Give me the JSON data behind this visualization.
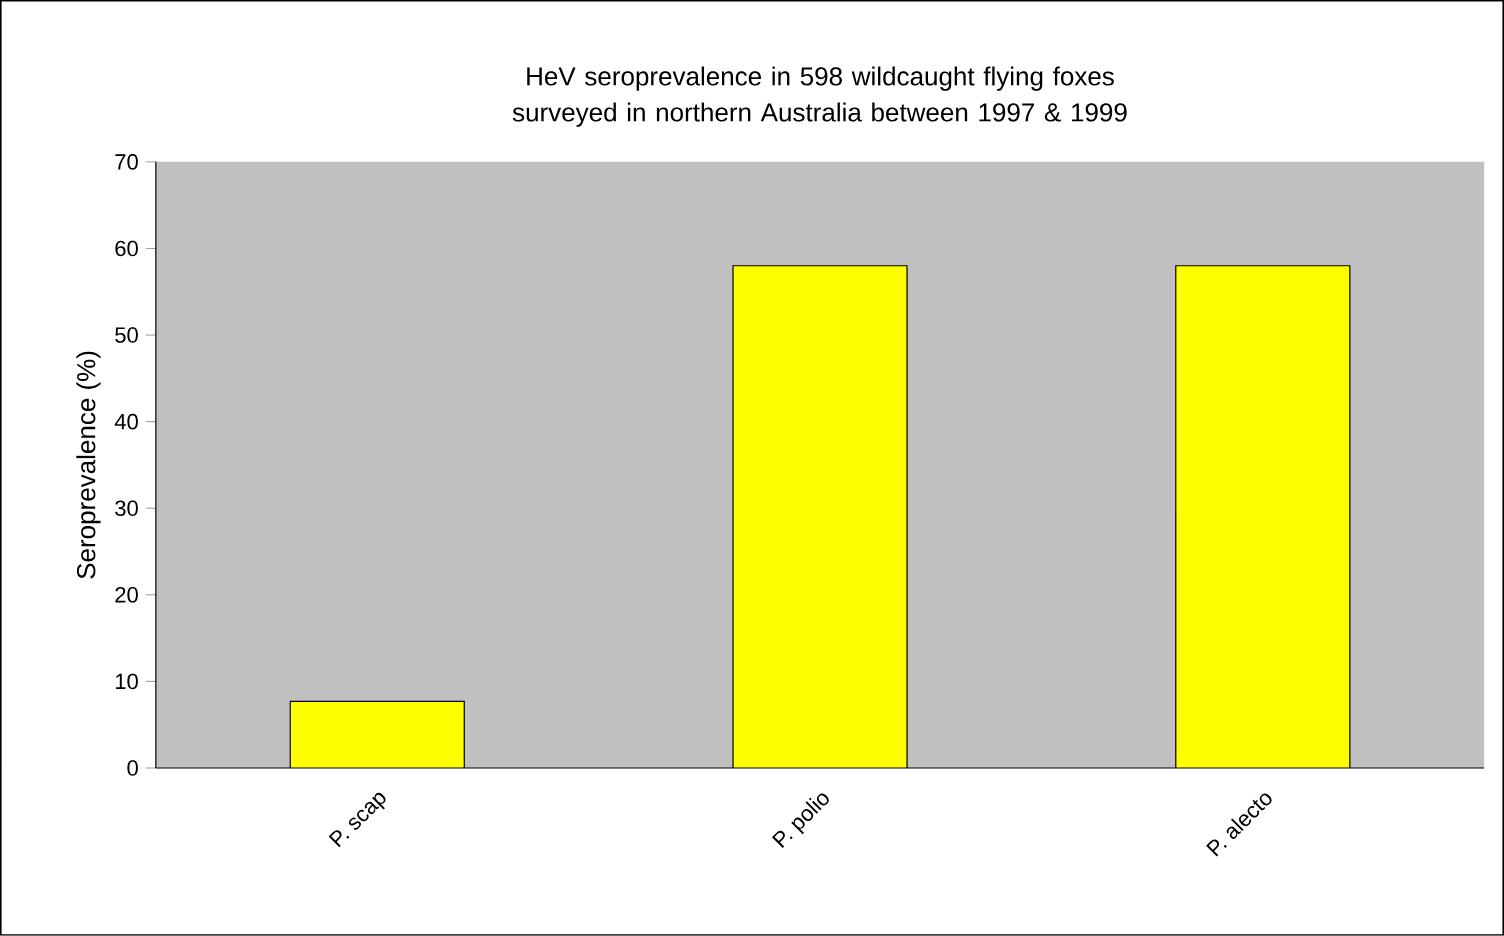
{
  "chart_data": {
    "type": "bar",
    "title": "HeV seroprevalence in 598 wildcaught flying foxes surveyed in northern Australia between 1997 & 1999",
    "ylabel": "Seroprevalence (%)",
    "categories": [
      "P. scap",
      "P. polio",
      "P. alecto"
    ],
    "values": [
      7.7,
      58,
      58
    ],
    "color": "#ffff00",
    "ylim": [
      0,
      70
    ],
    "yticks": [
      0,
      10,
      20,
      30,
      40,
      50,
      60,
      70
    ],
    "grid": false
  }
}
